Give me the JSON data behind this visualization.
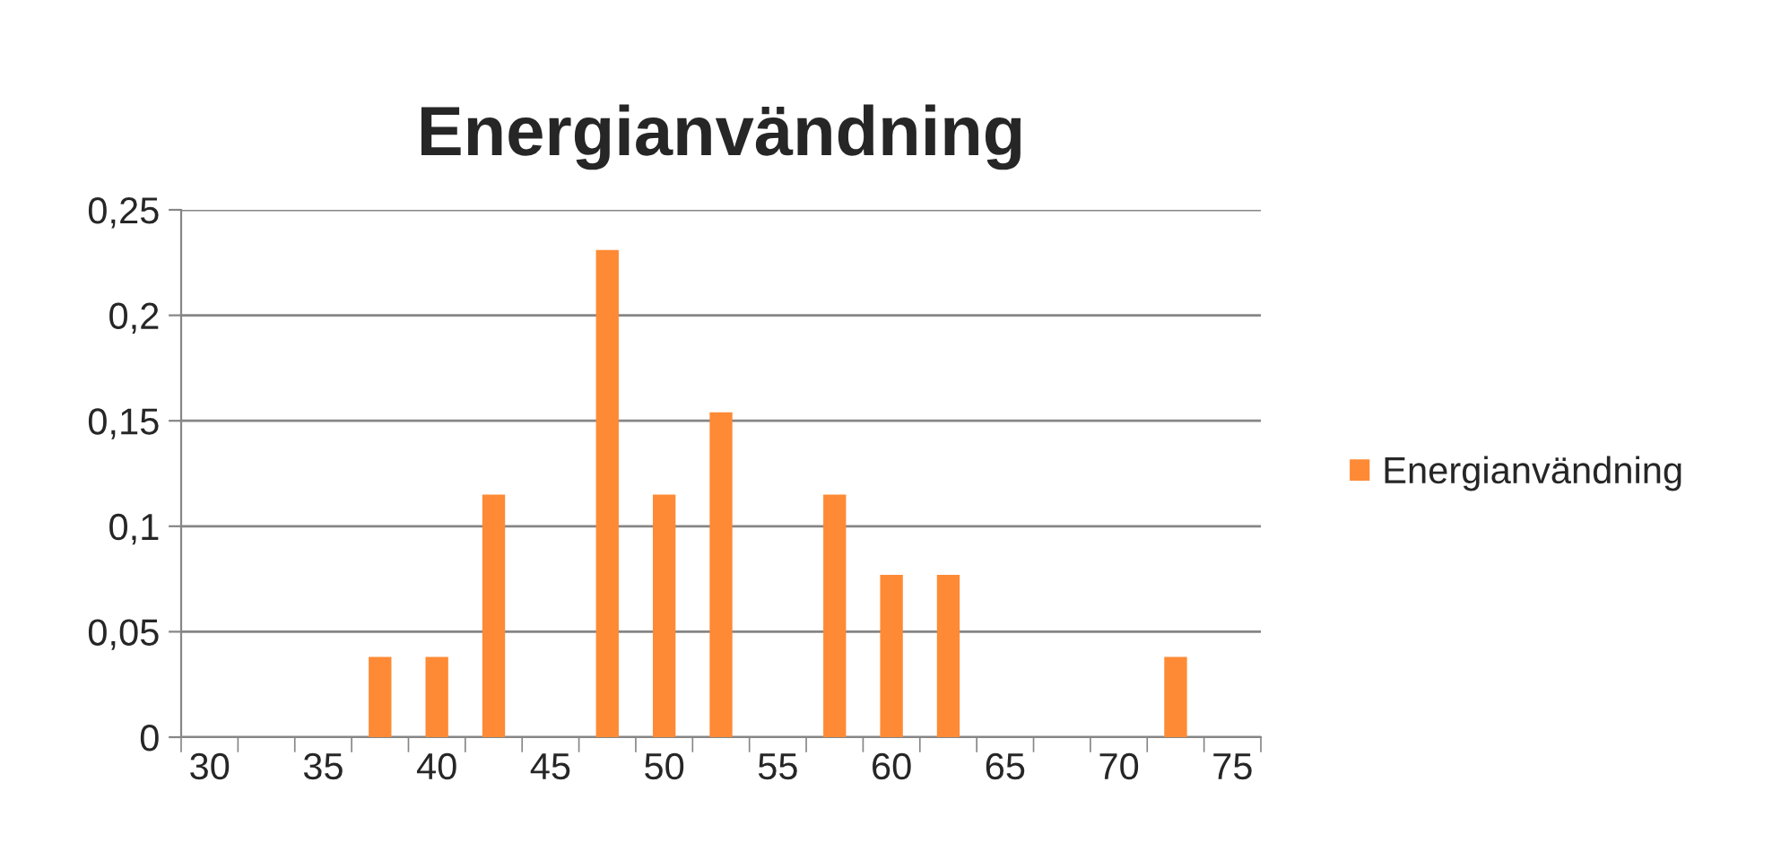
{
  "chart_data": {
    "type": "bar",
    "title": "Energianvändning",
    "categories": [
      "30",
      null,
      "35",
      null,
      "40",
      null,
      "45",
      null,
      "50",
      null,
      "55",
      null,
      "60",
      null,
      "65",
      null,
      "70",
      null,
      "75"
    ],
    "series": [
      {
        "name": "Energianvändning",
        "color": "#fe8a35",
        "values": [
          0,
          0,
          0,
          0.038,
          0.038,
          0.115,
          0,
          0.231,
          0.115,
          0.154,
          0,
          0.115,
          0.077,
          0.077,
          0,
          0,
          0,
          0.038,
          0
        ]
      }
    ],
    "ylim": [
      0,
      0.25
    ],
    "yticks": [
      0,
      {
        "value": 0.05,
        "label": "0,05"
      },
      {
        "value": 0.1,
        "label": "0,1"
      },
      {
        "value": 0.15,
        "label": "0,15"
      },
      {
        "value": 0.2,
        "label": "0,2"
      },
      {
        "value": 0.25,
        "label": "0,25"
      }
    ],
    "grid": "y",
    "legend": "right"
  }
}
